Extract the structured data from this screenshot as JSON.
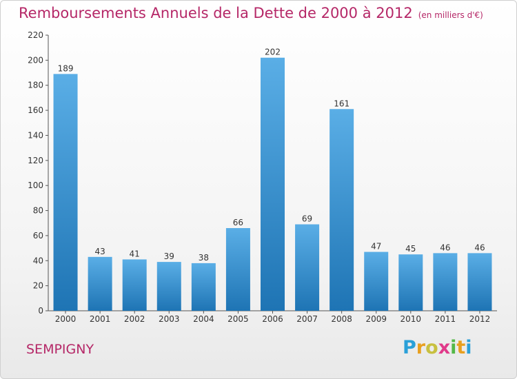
{
  "header": {
    "title": "Remboursements Annuels de la Dette de 2000 à 2012",
    "unit": "(en milliers d'€)"
  },
  "footer": {
    "city": "SEMPIGNY",
    "logo": "Proxiti"
  },
  "colors": {
    "bar_top": "#5aaee6",
    "bar_bottom": "#1e74b4",
    "title": "#b52767",
    "axis": "#555555"
  },
  "chart_data": {
    "type": "bar",
    "title": "Remboursements Annuels de la Dette de 2000 à 2012",
    "xlabel": "",
    "ylabel": "",
    "categories": [
      "2000",
      "2001",
      "2002",
      "2003",
      "2004",
      "2005",
      "2006",
      "2007",
      "2008",
      "2009",
      "2010",
      "2011",
      "2012"
    ],
    "values": [
      189,
      43,
      41,
      39,
      38,
      66,
      202,
      69,
      161,
      47,
      45,
      46,
      46
    ],
    "ylim": [
      0,
      220
    ],
    "yticks": [
      0,
      20,
      40,
      60,
      80,
      100,
      120,
      140,
      160,
      180,
      200,
      220
    ],
    "grid": false,
    "legend": "none"
  }
}
